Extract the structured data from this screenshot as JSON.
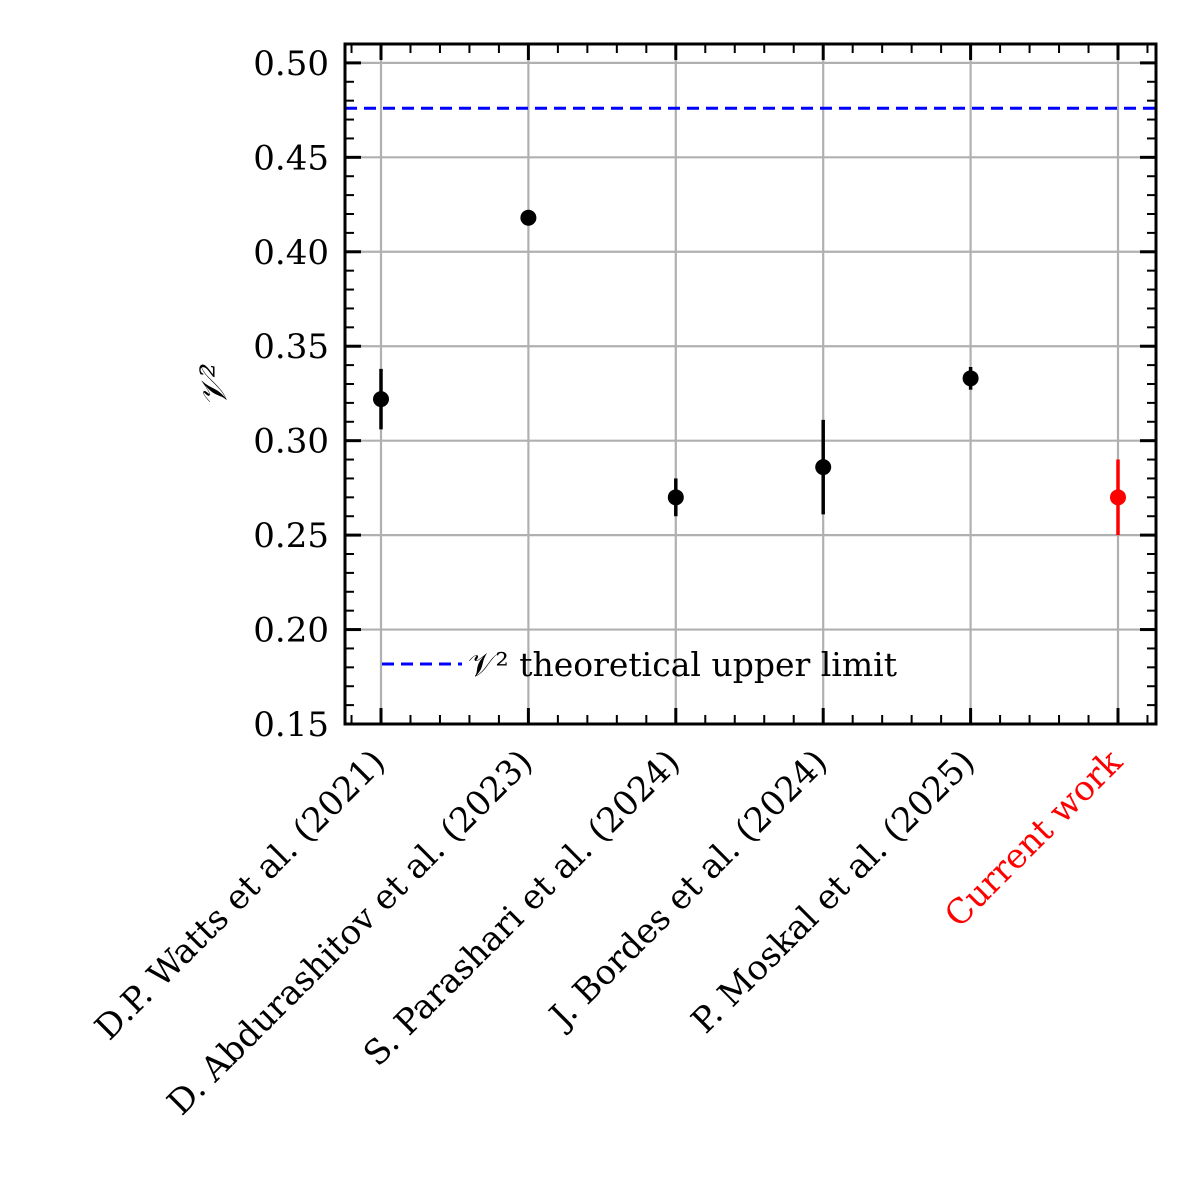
{
  "chart_data": {
    "type": "scatter",
    "title": "",
    "xlabel": "",
    "ylabel": "𝒱²",
    "ylim": [
      0.15,
      0.51
    ],
    "yticks": [
      "0.15",
      "0.20",
      "0.25",
      "0.30",
      "0.35",
      "0.40",
      "0.45",
      "0.50"
    ],
    "grid": true,
    "legend_position": "lower-left",
    "categories": [
      "D.P. Watts et al. (2021)",
      "D. Abdurashitov et al. (2023)",
      "S. Parashari et al. (2024)",
      "J. Bordes et al. (2024)",
      "P. Moskal et al. (2025)",
      "Current work"
    ],
    "series": [
      {
        "values": [
          0.322,
          0.418,
          0.27,
          0.286,
          0.333,
          0.27
        ],
        "errors": [
          0.016,
          0.0,
          0.01,
          0.025,
          0.006,
          0.02
        ],
        "colors": [
          "#000000",
          "#000000",
          "#000000",
          "#000000",
          "#000000",
          "#ff0000"
        ]
      }
    ],
    "reference_line": {
      "name": "𝒱² theoretical upper limit",
      "value": 0.476,
      "color": "#0000ff",
      "style": "dashed"
    }
  }
}
